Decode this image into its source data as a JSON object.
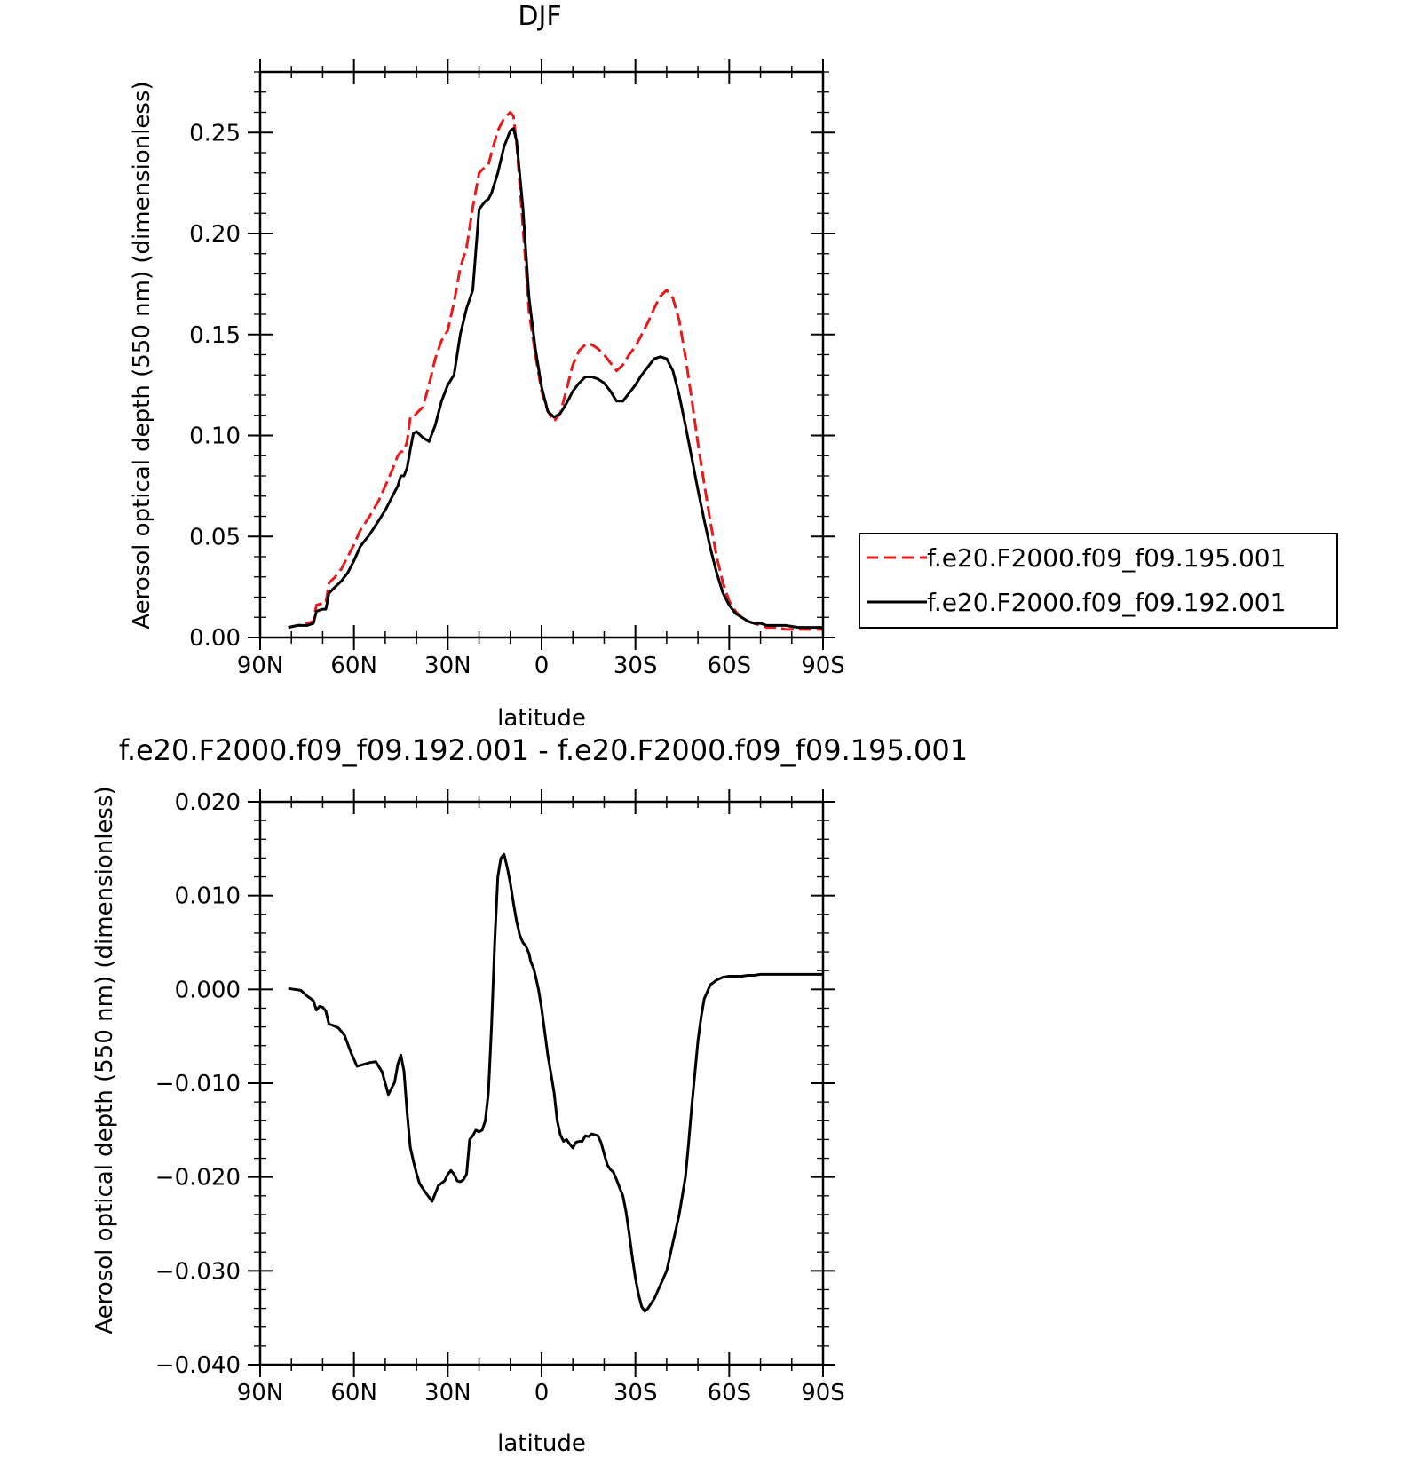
{
  "chart_data": [
    {
      "type": "line",
      "title": "DJF",
      "xlabel": "latitude",
      "ylabel": "Aerosol optical depth (550 nm) (dimensionless)",
      "xlim": [
        90,
        -90
      ],
      "ylim": [
        0,
        0.28
      ],
      "x_ticks": [
        90,
        60,
        30,
        0,
        -30,
        -60,
        -90
      ],
      "x_tick_labels": [
        "90N",
        "60N",
        "30N",
        "0",
        "30S",
        "60S",
        "90S"
      ],
      "y_ticks": [
        0,
        0.05,
        0.1,
        0.15,
        0.2,
        0.25
      ],
      "y_tick_labels": [
        "0.00",
        "0.05",
        "0.10",
        "0.15",
        "0.20",
        "0.25"
      ],
      "legend_position": "right",
      "series": [
        {
          "name": "f.e20.F2000.f09_f09.195.001",
          "color": "#e8191a",
          "dash": "dashed",
          "x": [
            81,
            78,
            75,
            73,
            72,
            70,
            69,
            68,
            66,
            64,
            62,
            60,
            58,
            55,
            52,
            50,
            48,
            46,
            45,
            44,
            43,
            42,
            41,
            40,
            38,
            36,
            34,
            32,
            30,
            28,
            26,
            24,
            22,
            20,
            18,
            17,
            16,
            14,
            12,
            10,
            9,
            8,
            6,
            4,
            2,
            0,
            -2,
            -4,
            -6,
            -8,
            -10,
            -12,
            -14,
            -16,
            -18,
            -20,
            -22,
            -24,
            -26,
            -28,
            -30,
            -32,
            -34,
            -36,
            -38,
            -40,
            -42,
            -44,
            -46,
            -48,
            -50,
            -52,
            -54,
            -56,
            -58,
            -60,
            -62,
            -64,
            -66,
            -68,
            -70,
            -72,
            -75,
            -78,
            -82,
            -86,
            -90
          ],
          "y": [
            0.005,
            0.006,
            0.007,
            0.008,
            0.016,
            0.017,
            0.017,
            0.027,
            0.03,
            0.034,
            0.04,
            0.046,
            0.053,
            0.06,
            0.068,
            0.075,
            0.082,
            0.09,
            0.092,
            0.092,
            0.097,
            0.109,
            0.109,
            0.111,
            0.114,
            0.125,
            0.138,
            0.147,
            0.152,
            0.166,
            0.183,
            0.193,
            0.213,
            0.23,
            0.233,
            0.234,
            0.24,
            0.251,
            0.257,
            0.26,
            0.258,
            0.245,
            0.204,
            0.161,
            0.14,
            0.122,
            0.112,
            0.107,
            0.111,
            0.123,
            0.135,
            0.142,
            0.145,
            0.145,
            0.143,
            0.14,
            0.136,
            0.132,
            0.135,
            0.14,
            0.144,
            0.15,
            0.156,
            0.163,
            0.169,
            0.172,
            0.168,
            0.157,
            0.139,
            0.118,
            0.096,
            0.076,
            0.057,
            0.04,
            0.027,
            0.018,
            0.013,
            0.01,
            0.008,
            0.007,
            0.006,
            0.005,
            0.005,
            0.004,
            0.004,
            0.004,
            0.004
          ]
        },
        {
          "name": "f.e20.F2000.f09_f09.192.001",
          "color": "#000000",
          "dash": "solid",
          "x": [
            81,
            78,
            75,
            73,
            72,
            70,
            69,
            68,
            66,
            64,
            62,
            60,
            58,
            55,
            52,
            50,
            48,
            46,
            45,
            44,
            43,
            42,
            41,
            40,
            38,
            36,
            34,
            32,
            30,
            28,
            26,
            24,
            22,
            20,
            18,
            17,
            16,
            14,
            12,
            10,
            9,
            8,
            6,
            4,
            2,
            0,
            -2,
            -4,
            -6,
            -8,
            -10,
            -12,
            -14,
            -16,
            -18,
            -20,
            -22,
            -24,
            -26,
            -28,
            -30,
            -32,
            -34,
            -36,
            -38,
            -40,
            -42,
            -44,
            -46,
            -48,
            -50,
            -52,
            -54,
            -56,
            -58,
            -60,
            -62,
            -64,
            -66,
            -68,
            -70,
            -72,
            -75,
            -78,
            -82,
            -86,
            -90
          ],
          "y": [
            0.005,
            0.006,
            0.006,
            0.007,
            0.013,
            0.014,
            0.014,
            0.022,
            0.025,
            0.028,
            0.032,
            0.038,
            0.045,
            0.051,
            0.058,
            0.063,
            0.069,
            0.075,
            0.08,
            0.08,
            0.084,
            0.093,
            0.101,
            0.102,
            0.099,
            0.097,
            0.105,
            0.117,
            0.125,
            0.13,
            0.15,
            0.163,
            0.172,
            0.212,
            0.216,
            0.217,
            0.22,
            0.23,
            0.243,
            0.251,
            0.252,
            0.246,
            0.213,
            0.168,
            0.143,
            0.124,
            0.112,
            0.109,
            0.111,
            0.116,
            0.122,
            0.126,
            0.129,
            0.129,
            0.128,
            0.126,
            0.122,
            0.117,
            0.117,
            0.121,
            0.125,
            0.13,
            0.134,
            0.138,
            0.139,
            0.138,
            0.132,
            0.12,
            0.105,
            0.089,
            0.073,
            0.058,
            0.044,
            0.032,
            0.022,
            0.016,
            0.012,
            0.01,
            0.008,
            0.007,
            0.007,
            0.006,
            0.006,
            0.006,
            0.005,
            0.005,
            0.005
          ]
        }
      ]
    },
    {
      "type": "line",
      "title": "f.e20.F2000.f09_f09.192.001 - f.e20.F2000.f09_f09.195.001",
      "xlabel": "latitude",
      "ylabel": "Aerosol optical depth (550 nm) (dimensionless)",
      "xlim": [
        90,
        -90
      ],
      "ylim": [
        -0.04,
        0.02
      ],
      "x_ticks": [
        90,
        60,
        30,
        0,
        -30,
        -60,
        -90
      ],
      "x_tick_labels": [
        "90N",
        "60N",
        "30N",
        "0",
        "30S",
        "60S",
        "90S"
      ],
      "y_ticks": [
        0.02,
        0.01,
        0,
        -0.01,
        -0.02,
        -0.03,
        -0.04
      ],
      "y_tick_labels": [
        "0.020",
        "0.010",
        "0.000",
        "−0.010",
        "−0.020",
        "−0.030",
        "−0.040"
      ],
      "series": [
        {
          "color": "#000000",
          "dash": "solid",
          "x": [
            81,
            79,
            77,
            75,
            73,
            72,
            71,
            70,
            69,
            68,
            67,
            65,
            63,
            61,
            59,
            57,
            55,
            53,
            51,
            49,
            47,
            46,
            45,
            44,
            43,
            42,
            41,
            40,
            39,
            37,
            35,
            33,
            31,
            30,
            29,
            28,
            27,
            26,
            25,
            24,
            23,
            22,
            21,
            20,
            19,
            18,
            17,
            16,
            15,
            14,
            13,
            12,
            11,
            10,
            9,
            8,
            7,
            6,
            5,
            4,
            3.5,
            3,
            2.5,
            2,
            1,
            0,
            -1,
            -2,
            -3,
            -4,
            -5,
            -6,
            -7,
            -8,
            -9,
            -10,
            -11,
            -12,
            -13,
            -14,
            -15,
            -16,
            -17,
            -18,
            -19,
            -20,
            -21,
            -22,
            -23,
            -24,
            -25,
            -26,
            -27,
            -28,
            -29,
            -30,
            -31,
            -32,
            -33,
            -34,
            -36,
            -38,
            -40,
            -42,
            -44,
            -46,
            -47,
            -48,
            -49,
            -50,
            -51,
            -52,
            -54,
            -56,
            -58,
            -60,
            -62,
            -64,
            -66,
            -68,
            -70,
            -72,
            -75,
            -78,
            -82,
            -86,
            -90
          ],
          "y": [
            0.0001,
            0.0,
            -0.0001,
            -0.0007,
            -0.0012,
            -0.0022,
            -0.0018,
            -0.0019,
            -0.0023,
            -0.0037,
            -0.0038,
            -0.0041,
            -0.0049,
            -0.0067,
            -0.0082,
            -0.008,
            -0.0078,
            -0.0077,
            -0.0088,
            -0.0112,
            -0.0099,
            -0.008,
            -0.007,
            -0.0087,
            -0.0131,
            -0.0168,
            -0.0183,
            -0.0196,
            -0.0207,
            -0.0217,
            -0.0226,
            -0.0209,
            -0.0204,
            -0.0197,
            -0.0193,
            -0.0197,
            -0.0204,
            -0.0205,
            -0.0203,
            -0.0197,
            -0.016,
            -0.0156,
            -0.015,
            -0.0152,
            -0.015,
            -0.014,
            -0.011,
            -0.004,
            0.005,
            0.012,
            0.014,
            0.0144,
            0.013,
            0.0113,
            0.0092,
            0.0073,
            0.0058,
            0.005,
            0.0046,
            0.0038,
            0.003,
            0.0026,
            0.0022,
            0.0015,
            0.0,
            -0.002,
            -0.0045,
            -0.007,
            -0.009,
            -0.011,
            -0.014,
            -0.0155,
            -0.0162,
            -0.016,
            -0.0165,
            -0.0169,
            -0.0163,
            -0.0162,
            -0.0162,
            -0.0156,
            -0.0157,
            -0.0154,
            -0.0155,
            -0.0156,
            -0.0163,
            -0.0175,
            -0.0187,
            -0.0192,
            -0.0195,
            -0.0203,
            -0.0212,
            -0.022,
            -0.0237,
            -0.026,
            -0.0285,
            -0.0308,
            -0.0325,
            -0.0338,
            -0.0343,
            -0.034,
            -0.033,
            -0.0315,
            -0.03,
            -0.027,
            -0.024,
            -0.02,
            -0.0165,
            -0.0125,
            -0.009,
            -0.0055,
            -0.003,
            -0.001,
            0.0005,
            0.001,
            0.0013,
            0.0014,
            0.0014,
            0.0014,
            0.0015,
            0.0015,
            0.0016,
            0.0016,
            0.0016,
            0.0016,
            0.0016,
            0.0016,
            0.0016
          ]
        }
      ]
    }
  ]
}
